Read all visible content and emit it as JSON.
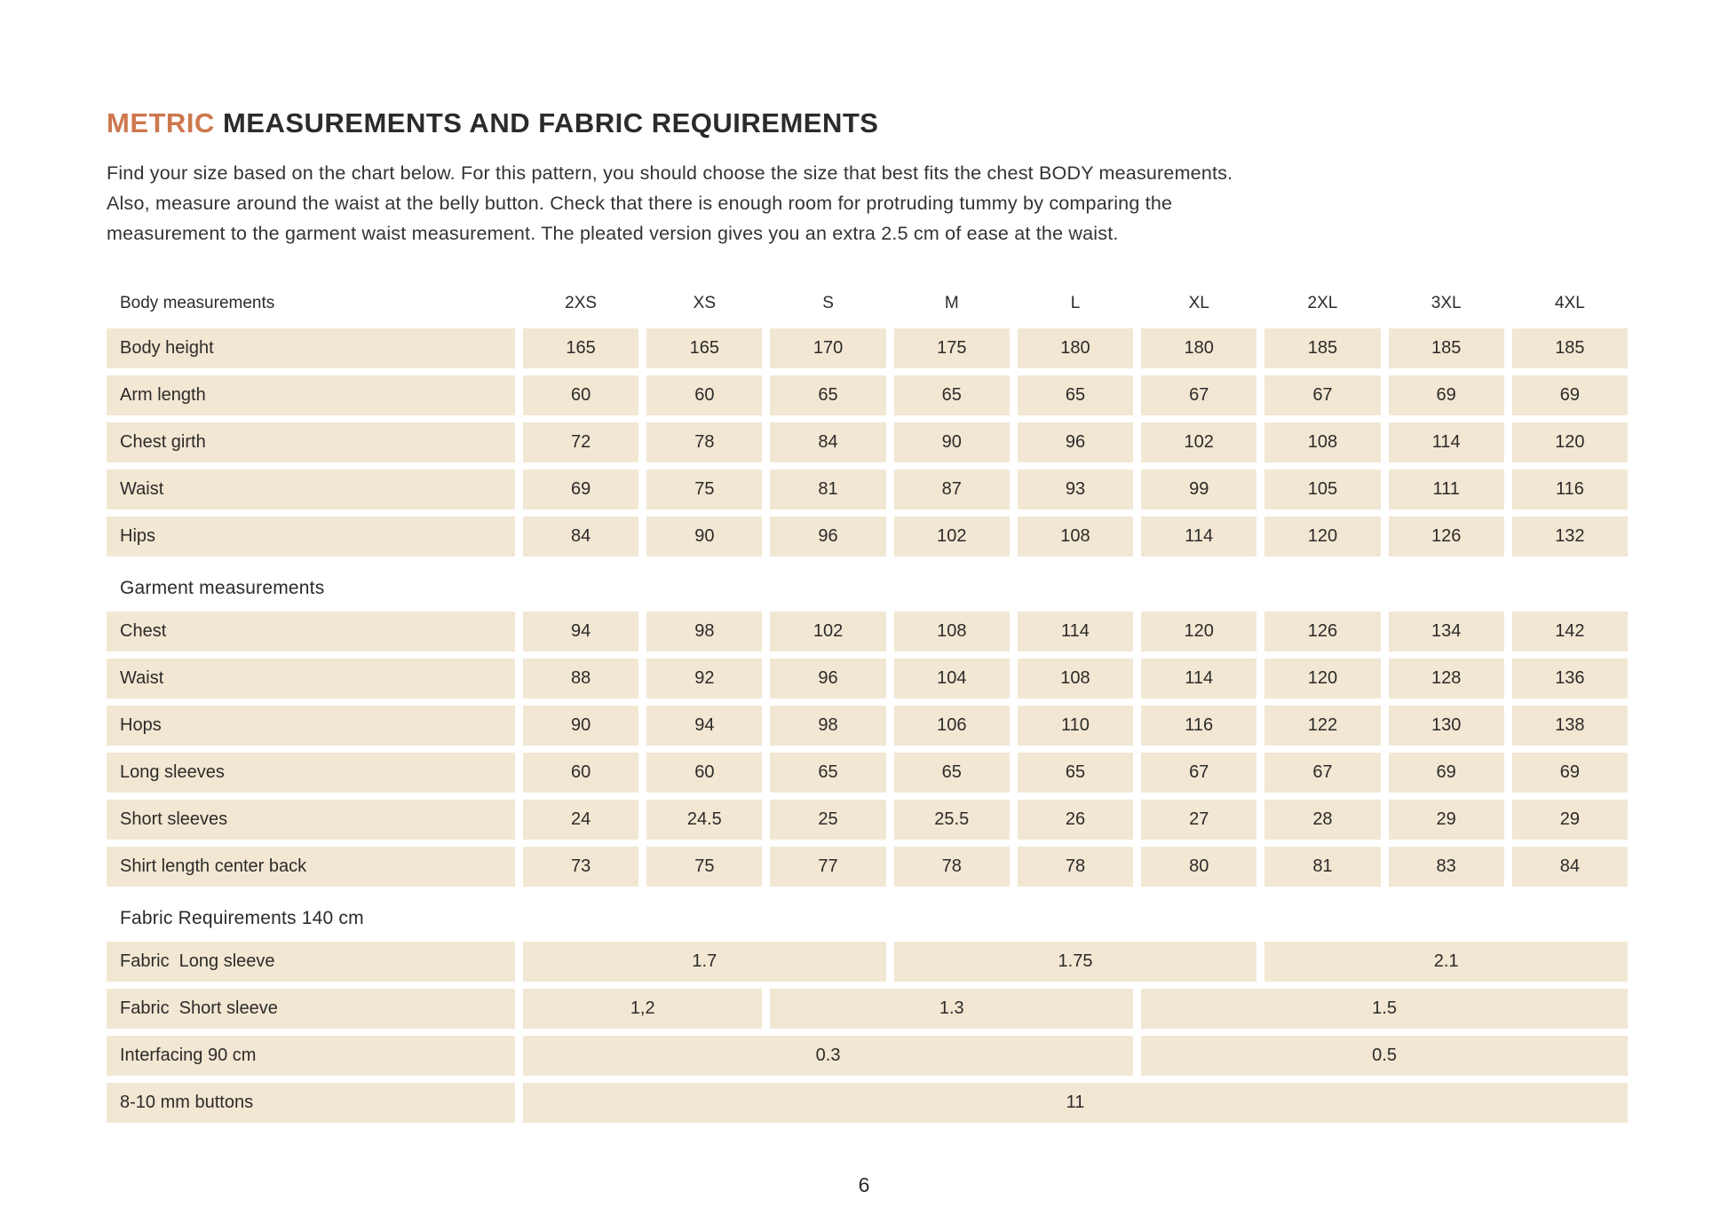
{
  "page": {
    "title_highlight": "METRIC",
    "title_rest": "MEASUREMENTS AND FABRIC REQUIREMENTS",
    "intro_lines": [
      "Find your size based on the chart below. For this pattern, you should choose the size that best fits the chest BODY measurements.",
      "Also, measure around the waist at the belly button. Check that there is enough room for protruding tummy by comparing the",
      "measurement to the garment waist measurement. The pleated version gives you an extra 2.5 cm of ease at the waist."
    ],
    "page_number": "6"
  },
  "colors": {
    "accent": "#cd784d",
    "row_bg": "#f2e7d3",
    "text": "#2c2b29"
  },
  "table": {
    "sizes_header_label": "Body measurements",
    "sizes": [
      "2XS",
      "XS",
      "S",
      "M",
      "L",
      "XL",
      "2XL",
      "3XL",
      "4XL"
    ],
    "body_rows": [
      {
        "label": "Body height",
        "values": [
          "165",
          "165",
          "170",
          "175",
          "180",
          "180",
          "185",
          "185",
          "185"
        ]
      },
      {
        "label": "Arm length",
        "values": [
          "60",
          "60",
          "65",
          "65",
          "65",
          "67",
          "67",
          "69",
          "69"
        ]
      },
      {
        "label": "Chest girth",
        "values": [
          "72",
          "78",
          "84",
          "90",
          "96",
          "102",
          "108",
          "114",
          "120"
        ]
      },
      {
        "label": "Waist",
        "values": [
          "69",
          "75",
          "81",
          "87",
          "93",
          "99",
          "105",
          "111",
          "116"
        ]
      },
      {
        "label": "Hips",
        "values": [
          "84",
          "90",
          "96",
          "102",
          "108",
          "114",
          "120",
          "126",
          "132"
        ]
      }
    ],
    "garment_section_label": "Garment measurements",
    "garment_rows": [
      {
        "label": "Chest",
        "values": [
          "94",
          "98",
          "102",
          "108",
          "114",
          "120",
          "126",
          "134",
          "142"
        ]
      },
      {
        "label": "Waist",
        "values": [
          "88",
          "92",
          "96",
          "104",
          "108",
          "114",
          "120",
          "128",
          "136"
        ]
      },
      {
        "label": "Hops",
        "values": [
          "90",
          "94",
          "98",
          "106",
          "110",
          "116",
          "122",
          "130",
          "138"
        ]
      },
      {
        "label": "Long sleeves",
        "values": [
          "60",
          "60",
          "65",
          "65",
          "65",
          "67",
          "67",
          "69",
          "69"
        ]
      },
      {
        "label": "Short sleeves",
        "values": [
          "24",
          "24.5",
          "25",
          "25.5",
          "26",
          "27",
          "28",
          "29",
          "29"
        ]
      },
      {
        "label": "Shirt length center back",
        "values": [
          "73",
          "75",
          "77",
          "78",
          "78",
          "80",
          "81",
          "83",
          "84"
        ]
      }
    ],
    "fabric_section_label": "Fabric Requirements 140 cm",
    "fabric_rows": [
      {
        "label": "Fabric  Long sleeve",
        "cells": [
          {
            "span": 3,
            "value": "1.7"
          },
          {
            "span": 3,
            "value": "1.75"
          },
          {
            "span": 3,
            "value": "2.1"
          }
        ]
      },
      {
        "label": "Fabric  Short sleeve",
        "cells": [
          {
            "span": 2,
            "value": "1,2"
          },
          {
            "span": 3,
            "value": "1.3"
          },
          {
            "span": 4,
            "value": "1.5"
          }
        ]
      },
      {
        "label": "Interfacing 90 cm",
        "cells": [
          {
            "span": 5,
            "value": "0.3"
          },
          {
            "span": 4,
            "value": "0.5"
          }
        ]
      },
      {
        "label": "8-10 mm buttons",
        "cells": [
          {
            "span": 9,
            "value": "11"
          }
        ]
      }
    ]
  }
}
